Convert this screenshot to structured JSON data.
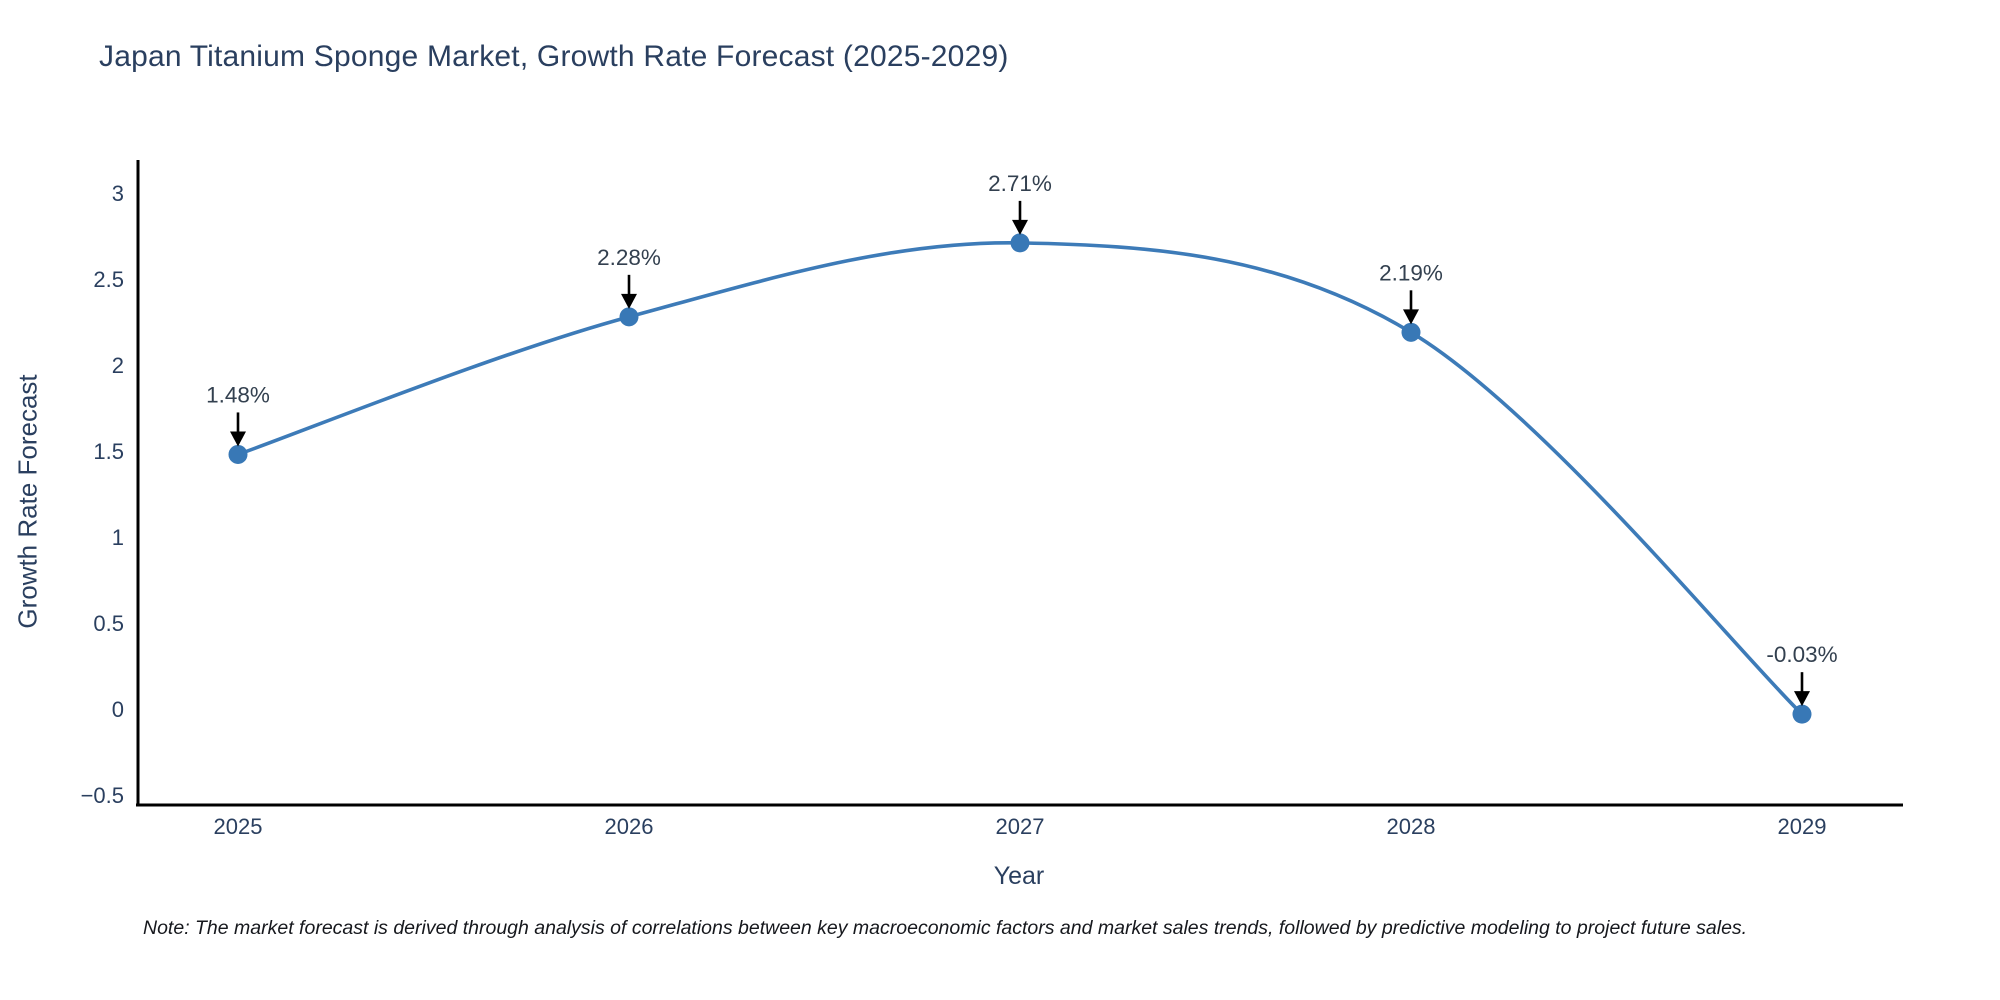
{
  "title": "Japan Titanium Sponge Market, Growth Rate Forecast (2025-2029)",
  "footnote": "Note: The market forecast is derived through analysis of correlations between key macroeconomic factors and market sales trends, followed by predictive modeling to project future sales.",
  "chart_data": {
    "type": "line",
    "line_shape": "spline",
    "title": "Japan Titanium Sponge Market, Growth Rate Forecast (2025-2029)",
    "xlabel": "Year",
    "ylabel": "Growth Rate Forecast",
    "categories": [
      "2025",
      "2026",
      "2027",
      "2028",
      "2029"
    ],
    "values": [
      1.48,
      2.28,
      2.71,
      2.19,
      -0.03
    ],
    "point_labels": [
      "1.48%",
      "2.28%",
      "2.71%",
      "2.19%",
      "-0.03%"
    ],
    "ylim": [
      -0.5,
      3
    ],
    "yticks": [
      -0.5,
      0,
      0.5,
      1,
      1.5,
      2,
      2.5,
      3
    ],
    "grid": false,
    "legend": "none",
    "colors": {
      "line": "#3d7bb8",
      "marker": "#3878b6",
      "axis": "#000000",
      "tick_text": "#2a3f5f",
      "annotation_text": "#33404f",
      "annotation_arrow": "#000000",
      "background": "#ffffff"
    }
  }
}
